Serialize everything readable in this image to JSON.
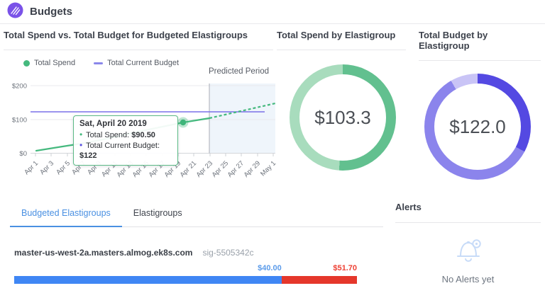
{
  "header": {
    "title": "Budgets"
  },
  "panels": {
    "spend_vs_budget": {
      "title": "Total Spend vs. Total Budget for Budgeted Elastigroups",
      "legend": [
        {
          "label": "Total Spend",
          "color": "#45b97e",
          "marker": "circle"
        },
        {
          "label": "Total Current Budget",
          "color": "#8a87ea",
          "marker": "line"
        }
      ],
      "predicted_label": "Predicted Period",
      "y_ticks": [
        "$200",
        "$100",
        "$0"
      ],
      "x_ticks": [
        "Apr 1",
        "Apr 3",
        "Apr 5",
        "Apr 7",
        "Apr 9",
        "Apr 11",
        "Apr 13",
        "Apr 15",
        "Apr 17",
        "Apr 19",
        "Apr 21",
        "Apr 23",
        "Apr 25",
        "Apr 27",
        "Apr 29",
        "May 1"
      ],
      "tooltip": {
        "title": "Sat, April 20 2019",
        "rows": [
          {
            "label": "Total Spend:",
            "value": "$90.50",
            "color": "#45b97e"
          },
          {
            "label": "Total Current Budget:",
            "value": "$122",
            "color": "#5b51e0"
          }
        ]
      }
    },
    "spend_donut": {
      "title": "Total Spend by Elastigroup",
      "center_value": "$103.3"
    },
    "budget_donut": {
      "title": "Total Budget by Elastigroup",
      "center_value": "$122.0"
    },
    "elastigroups": {
      "tabs": [
        {
          "label": "Budgeted Elastigroups",
          "active": true
        },
        {
          "label": "Elastigroups",
          "active": false
        }
      ],
      "row": {
        "name": "master-us-west-2a.masters.almog.ek8s.com",
        "sig": "sig-5505342c",
        "spend_label": "$40.00",
        "overage_label": "$51.70"
      }
    },
    "alerts": {
      "title": "Alerts",
      "empty_text": "No Alerts yet"
    }
  },
  "chart_data": [
    {
      "type": "line",
      "title": "Total Spend vs. Total Budget for Budgeted Elastigroups",
      "ylim": [
        0,
        200
      ],
      "y_tick_labels": [
        "$0",
        "$100",
        "$200"
      ],
      "x_tick_labels": [
        "Apr 1",
        "Apr 3",
        "Apr 5",
        "Apr 7",
        "Apr 9",
        "Apr 11",
        "Apr 13",
        "Apr 15",
        "Apr 17",
        "Apr 19",
        "Apr 21",
        "Apr 23",
        "Apr 25",
        "Apr 27",
        "Apr 29",
        "May 1"
      ],
      "grid": true,
      "legend_position": "top-left",
      "series": [
        {
          "name": "Total Spend",
          "color": "#45b97e",
          "style": "solid",
          "points": [
            [
              "Apr 1",
              7
            ],
            [
              "Apr 4",
              19
            ],
            [
              "Apr 7",
              30
            ],
            [
              "Apr 10",
              45
            ],
            [
              "Apr 14",
              65
            ],
            [
              "Apr 17",
              78
            ],
            [
              "Apr 20",
              90.5
            ],
            [
              "Apr 23",
              103
            ]
          ],
          "predicted_points": [
            [
              "Apr 23",
              103
            ],
            [
              "May 1",
              147
            ]
          ],
          "predicted_style": "dashed"
        },
        {
          "name": "Total Current Budget",
          "color": "#7a70e8",
          "style": "solid",
          "points": [
            [
              "Apr 1",
              122
            ],
            [
              "Apr 29",
              122
            ]
          ]
        }
      ],
      "highlighted_point": {
        "x": "Apr 20",
        "y": 90.5
      },
      "annotation": {
        "label": "Predicted Period",
        "shaded_region": [
          "Apr 23",
          "May 1"
        ]
      },
      "tooltip": {
        "date": "Sat, April 20 2019",
        "total_spend": "$90.50",
        "total_current_budget": "$122"
      }
    },
    {
      "type": "pie",
      "title": "Total Spend by Elastigroup",
      "center_label": "$103.3",
      "slices": [
        {
          "degrees": 184,
          "color": "#62c08f"
        },
        {
          "degrees": 176,
          "color": "#a8dcbd"
        }
      ]
    },
    {
      "type": "pie",
      "title": "Total Budget by Elastigroup",
      "center_label": "$122.0",
      "slices": [
        {
          "degrees": 118,
          "color": "#5449e2"
        },
        {
          "degrees": 212,
          "color": "#8b84ec"
        },
        {
          "degrees": 30,
          "color": "#c9c4f6"
        }
      ]
    },
    {
      "type": "bar",
      "title": "Budgeted Elastigroups",
      "rows": [
        {
          "name": "master-us-west-2a.masters.almog.ek8s.com",
          "sig": "sig-5505342c",
          "segments": [
            {
              "label": "$40.00",
              "value": 40.0,
              "color": "#3f86f4",
              "fraction": 0.78
            },
            {
              "label": "$51.70",
              "value": 51.7,
              "color": "#e5372b",
              "fraction": 0.22
            }
          ]
        }
      ]
    }
  ]
}
